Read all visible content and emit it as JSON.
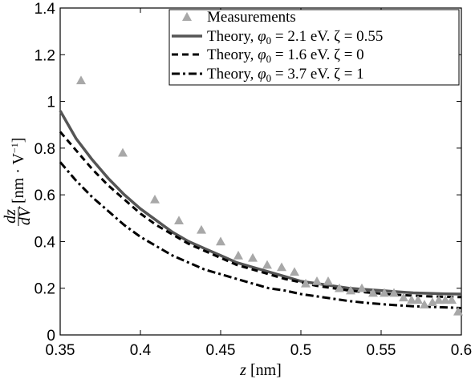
{
  "chart_data": {
    "type": "line",
    "title": "",
    "xlabel": "z [nm]",
    "ylabel": "dz/dV [nm · V⁻¹]",
    "xlim": [
      0.35,
      0.6
    ],
    "ylim": [
      0,
      1.4
    ],
    "xticks": [
      0.35,
      0.4,
      0.45,
      0.5,
      0.55,
      0.6
    ],
    "yticks": [
      0,
      0.2,
      0.4,
      0.6,
      0.8,
      1,
      1.2,
      1.4
    ],
    "xtick_labels": [
      "0.35",
      "0.4",
      "0.45",
      "0.5",
      "0.55",
      "0.6"
    ],
    "ytick_labels": [
      "0",
      "0.2",
      "0.4",
      "0.6",
      "0.8",
      "1",
      "1.2",
      "1.4"
    ],
    "grid": false,
    "legend_position": "top-right",
    "series": [
      {
        "name": "Measurements",
        "kind": "scatter",
        "marker": "triangle",
        "color": "#a8a8a8",
        "x": [
          0.363,
          0.389,
          0.409,
          0.424,
          0.438,
          0.45,
          0.461,
          0.47,
          0.479,
          0.488,
          0.496,
          0.503,
          0.51,
          0.517,
          0.524,
          0.531,
          0.538,
          0.545,
          0.552,
          0.558,
          0.564,
          0.569,
          0.573,
          0.577,
          0.582,
          0.586,
          0.59,
          0.594,
          0.598
        ],
        "y": [
          1.09,
          0.78,
          0.58,
          0.49,
          0.45,
          0.4,
          0.34,
          0.33,
          0.3,
          0.29,
          0.27,
          0.22,
          0.23,
          0.23,
          0.2,
          0.19,
          0.2,
          0.18,
          0.18,
          0.18,
          0.16,
          0.15,
          0.15,
          0.13,
          0.14,
          0.15,
          0.15,
          0.15,
          0.1
        ]
      },
      {
        "name": "Theory, φ0 = 2.1 eV. ζ = 0.55",
        "kind": "line",
        "dash": "solid",
        "color": "#555555",
        "x": [
          0.35,
          0.36,
          0.37,
          0.38,
          0.39,
          0.4,
          0.41,
          0.42,
          0.43,
          0.44,
          0.45,
          0.46,
          0.47,
          0.48,
          0.49,
          0.5,
          0.51,
          0.52,
          0.53,
          0.54,
          0.55,
          0.56,
          0.57,
          0.58,
          0.59,
          0.6
        ],
        "y": [
          0.96,
          0.84,
          0.75,
          0.67,
          0.6,
          0.54,
          0.49,
          0.44,
          0.4,
          0.37,
          0.34,
          0.31,
          0.29,
          0.27,
          0.25,
          0.23,
          0.22,
          0.21,
          0.2,
          0.195,
          0.19,
          0.185,
          0.18,
          0.178,
          0.176,
          0.175
        ]
      },
      {
        "name": "Theory, φ0 = 1.6 eV. ζ = 0",
        "kind": "line",
        "dash": "dashed",
        "color": "#000000",
        "x": [
          0.35,
          0.36,
          0.37,
          0.38,
          0.39,
          0.4,
          0.41,
          0.42,
          0.43,
          0.44,
          0.45,
          0.46,
          0.47,
          0.48,
          0.49,
          0.5,
          0.51,
          0.52,
          0.53,
          0.54,
          0.55,
          0.56,
          0.57,
          0.58,
          0.59,
          0.6
        ],
        "y": [
          0.87,
          0.79,
          0.71,
          0.64,
          0.58,
          0.52,
          0.47,
          0.43,
          0.39,
          0.36,
          0.33,
          0.3,
          0.28,
          0.26,
          0.24,
          0.225,
          0.21,
          0.2,
          0.19,
          0.183,
          0.177,
          0.172,
          0.168,
          0.165,
          0.163,
          0.162
        ]
      },
      {
        "name": "Theory, φ0 = 3.7 eV. ζ = 1",
        "kind": "line",
        "dash": "dashdot",
        "color": "#000000",
        "x": [
          0.35,
          0.36,
          0.37,
          0.38,
          0.39,
          0.4,
          0.41,
          0.42,
          0.43,
          0.44,
          0.45,
          0.46,
          0.47,
          0.48,
          0.49,
          0.5,
          0.51,
          0.52,
          0.53,
          0.54,
          0.55,
          0.56,
          0.57,
          0.58,
          0.59,
          0.6
        ],
        "y": [
          0.74,
          0.66,
          0.59,
          0.53,
          0.47,
          0.42,
          0.38,
          0.34,
          0.31,
          0.28,
          0.26,
          0.24,
          0.22,
          0.2,
          0.19,
          0.175,
          0.165,
          0.155,
          0.145,
          0.138,
          0.132,
          0.127,
          0.123,
          0.12,
          0.118,
          0.115
        ]
      }
    ],
    "legend_entries": [
      {
        "label_main": "Measurements",
        "sym": "",
        "sub": "",
        "rest": ""
      },
      {
        "label_main": "Theory, ",
        "sym": "φ",
        "sub": "0",
        "rest": " = 2.1 eV. ζ = 0.55"
      },
      {
        "label_main": "Theory, ",
        "sym": "φ",
        "sub": "0",
        "rest": " = 1.6 eV. ζ = 0"
      },
      {
        "label_main": "Theory, ",
        "sym": "φ",
        "sub": "0",
        "rest": " = 3.7 eV. ζ = 1"
      }
    ],
    "xlabel_parts": {
      "var": "z",
      "unit": " [nm]"
    },
    "ylabel_parts": {
      "num": "dz",
      "den": "dV",
      "unit": "[nm · V",
      "exp": "−1",
      "close": "]"
    }
  }
}
